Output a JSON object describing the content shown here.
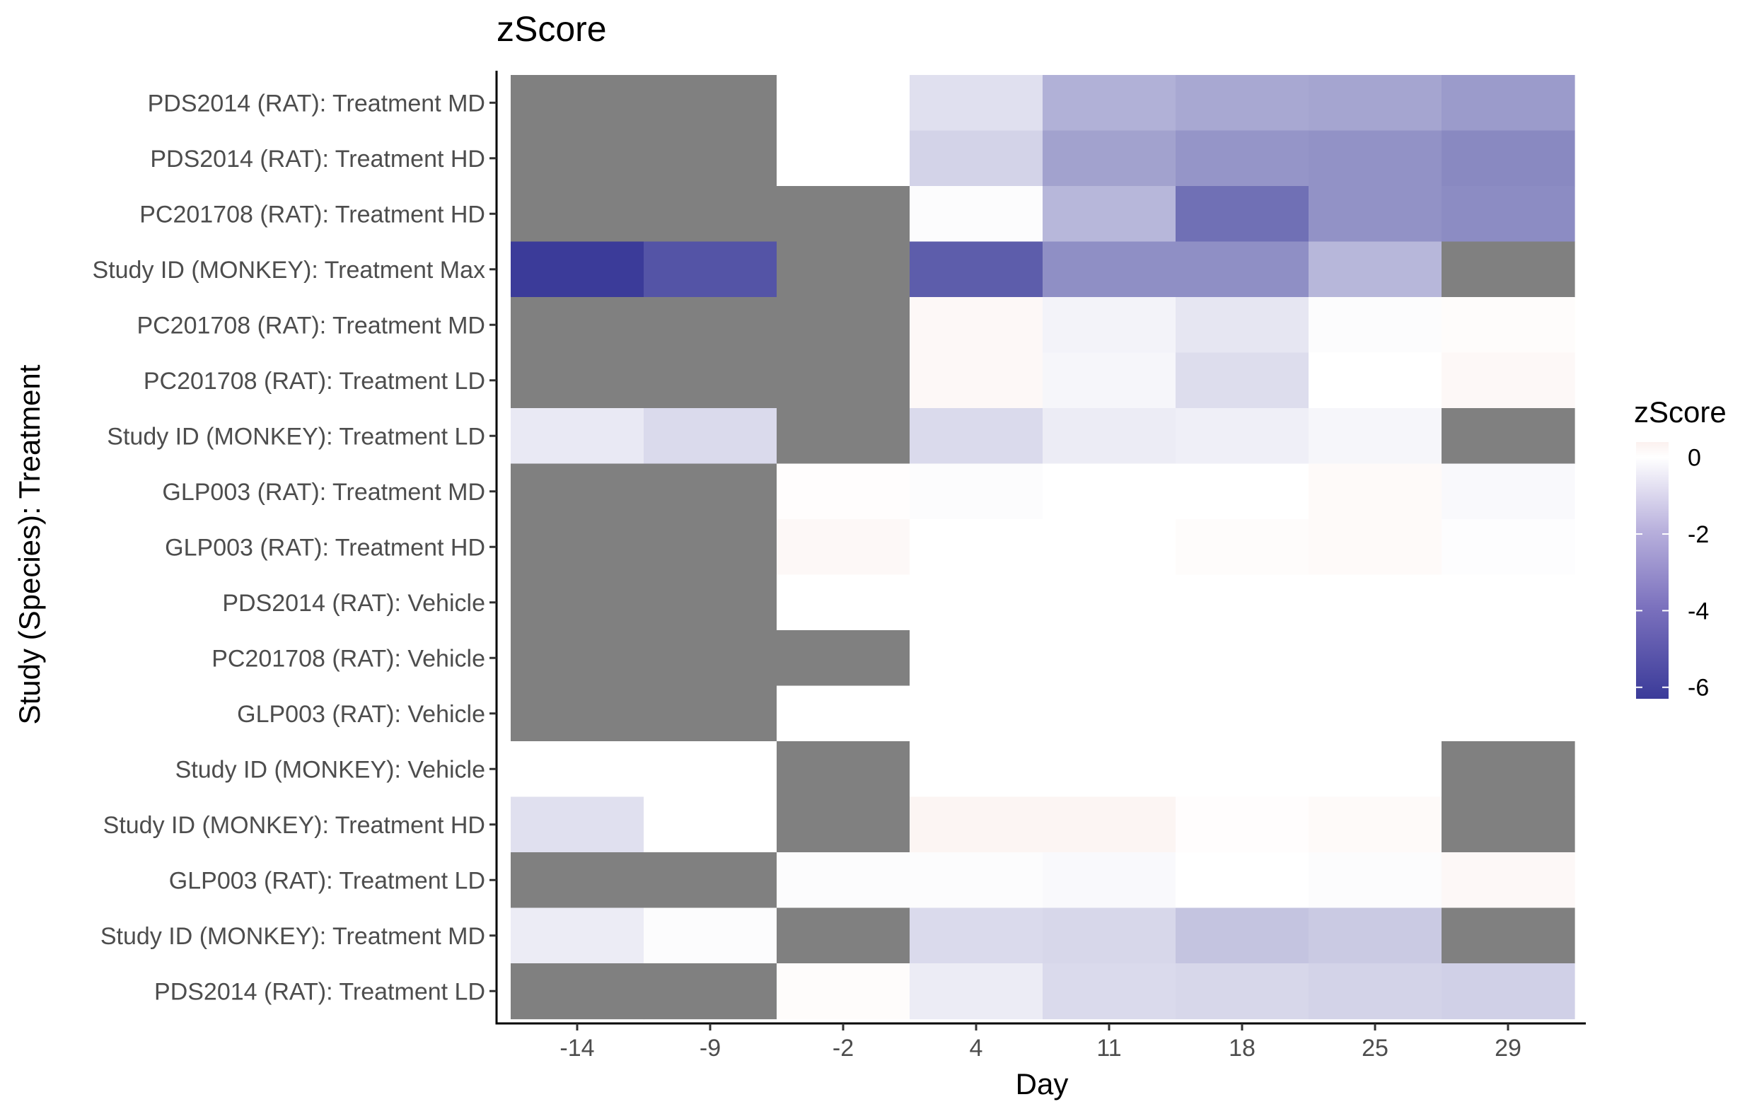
{
  "chart_data": {
    "type": "heatmap",
    "title": "zScore",
    "xlabel": "Day",
    "ylabel": "Study (Species): Treatment",
    "x_categories": [
      "-14",
      "-9",
      "-2",
      "4",
      "11",
      "18",
      "25",
      "29"
    ],
    "y_categories": [
      "PDS2014 (RAT): Treatment MD",
      "PDS2014 (RAT): Treatment HD",
      "PC201708 (RAT): Treatment HD",
      "Study ID (MONKEY): Treatment Max",
      "PC201708 (RAT): Treatment MD",
      "PC201708 (RAT): Treatment LD",
      "Study ID (MONKEY): Treatment LD",
      "GLP003 (RAT): Treatment MD",
      "GLP003 (RAT): Treatment HD",
      "PDS2014 (RAT): Vehicle",
      "PC201708 (RAT): Vehicle",
      "GLP003 (RAT): Vehicle",
      "Study ID (MONKEY): Vehicle",
      "Study ID (MONKEY): Treatment HD",
      "GLP003 (RAT): Treatment LD",
      "Study ID (MONKEY): Treatment MD",
      "PDS2014 (RAT): Treatment LD"
    ],
    "values": [
      [
        null,
        null,
        0,
        -1.0,
        -2.5,
        -2.8,
        -2.9,
        -3.2
      ],
      [
        null,
        null,
        0,
        -1.4,
        -3.0,
        -3.4,
        -3.5,
        -3.8
      ],
      [
        null,
        null,
        null,
        -0.1,
        -2.3,
        -4.6,
        -3.5,
        -3.7
      ],
      [
        -6.3,
        -5.5,
        null,
        -5.2,
        -3.6,
        -3.6,
        -2.3,
        null
      ],
      [
        null,
        null,
        null,
        0.2,
        -0.4,
        -0.8,
        -0.1,
        0.1
      ],
      [
        null,
        null,
        null,
        0.2,
        -0.3,
        -1.1,
        0.0,
        0.2
      ],
      [
        -0.7,
        -1.2,
        null,
        -1.2,
        -0.6,
        -0.5,
        -0.3,
        null
      ],
      [
        null,
        null,
        0.05,
        -0.1,
        0.0,
        0.0,
        0.15,
        -0.2
      ],
      [
        null,
        null,
        0.2,
        0.0,
        0.0,
        0.1,
        0.15,
        -0.05
      ],
      [
        null,
        null,
        0.0,
        0.0,
        0.0,
        0.0,
        0.0,
        0.0
      ],
      [
        null,
        null,
        null,
        0.0,
        0.0,
        0.0,
        0.0,
        0.0
      ],
      [
        null,
        null,
        0.0,
        0.0,
        0.0,
        0.0,
        0.0,
        0.0
      ],
      [
        0.0,
        0.0,
        null,
        0.0,
        0.0,
        0.0,
        0.0,
        null
      ],
      [
        -1.0,
        0.0,
        null,
        0.3,
        0.3,
        0.05,
        0.15,
        null
      ],
      [
        null,
        null,
        -0.1,
        -0.1,
        -0.2,
        0.0,
        -0.1,
        0.2
      ],
      [
        -0.6,
        -0.1,
        null,
        -1.2,
        -1.3,
        -1.9,
        -1.7,
        null
      ],
      [
        null,
        null,
        0.1,
        -0.6,
        -1.2,
        -1.3,
        -1.4,
        -1.5
      ]
    ],
    "na_color": "#808080",
    "color_scale": {
      "low_color": "#3b3b99",
      "mid_color": "#ffffff",
      "high_color": "#fbf1ef",
      "domain": [
        -6.3,
        0.4
      ]
    },
    "legend": {
      "title": "zScore",
      "ticks": [
        "0",
        "-2",
        "-4",
        "-6"
      ],
      "placement": "right"
    }
  }
}
